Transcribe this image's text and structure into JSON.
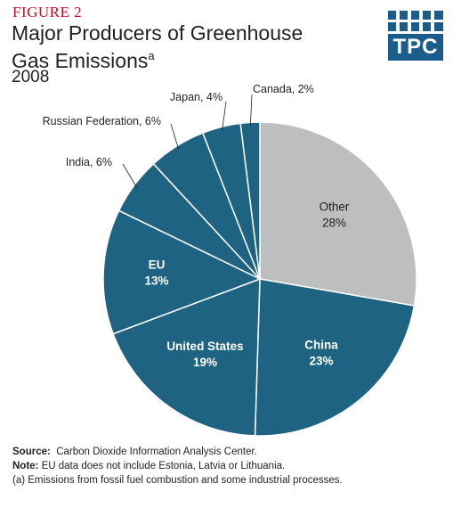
{
  "figure_label": "FIGURE 2",
  "title_line1": "Major Producers of Greenhouse",
  "title_line2": "Gas Emissions",
  "title_superscript": "a",
  "subtitle": "2008",
  "logo_text": "TPC",
  "colors": {
    "accent": "#c8102e",
    "slice": "#1f6382",
    "other": "#bcbec0",
    "logo": "#1a5c8c"
  },
  "chart_data": {
    "type": "pie",
    "title": "Major Producers of Greenhouse Gas Emissions",
    "slices": [
      {
        "label": "Other",
        "value": 28,
        "display": "28%",
        "color": "#bcbec0"
      },
      {
        "label": "China",
        "value": 23,
        "display": "23%",
        "color": "#1f6382"
      },
      {
        "label": "United States",
        "value": 19,
        "display": "19%",
        "color": "#1f6382"
      },
      {
        "label": "EU",
        "value": 13,
        "display": "13%",
        "color": "#1f6382"
      },
      {
        "label": "India",
        "value": 6,
        "display": "India, 6%",
        "color": "#1f6382"
      },
      {
        "label": "Russian Federation",
        "value": 6,
        "display": "Russian Federation, 6%",
        "color": "#1f6382"
      },
      {
        "label": "Japan",
        "value": 4,
        "display": "Japan, 4%",
        "color": "#1f6382"
      },
      {
        "label": "Canada",
        "value": 2,
        "display": "Canada, 2%",
        "color": "#1f6382"
      }
    ]
  },
  "notes": {
    "source_label": "Source:",
    "source_text": "Carbon Dioxide Information Analysis Center.",
    "note_label": "Note:",
    "note_text": "EU data does not include Estonia, Latvia or Lithuania.",
    "footnote": "(a) Emissions from fossil fuel combustion and some industrial processes."
  }
}
